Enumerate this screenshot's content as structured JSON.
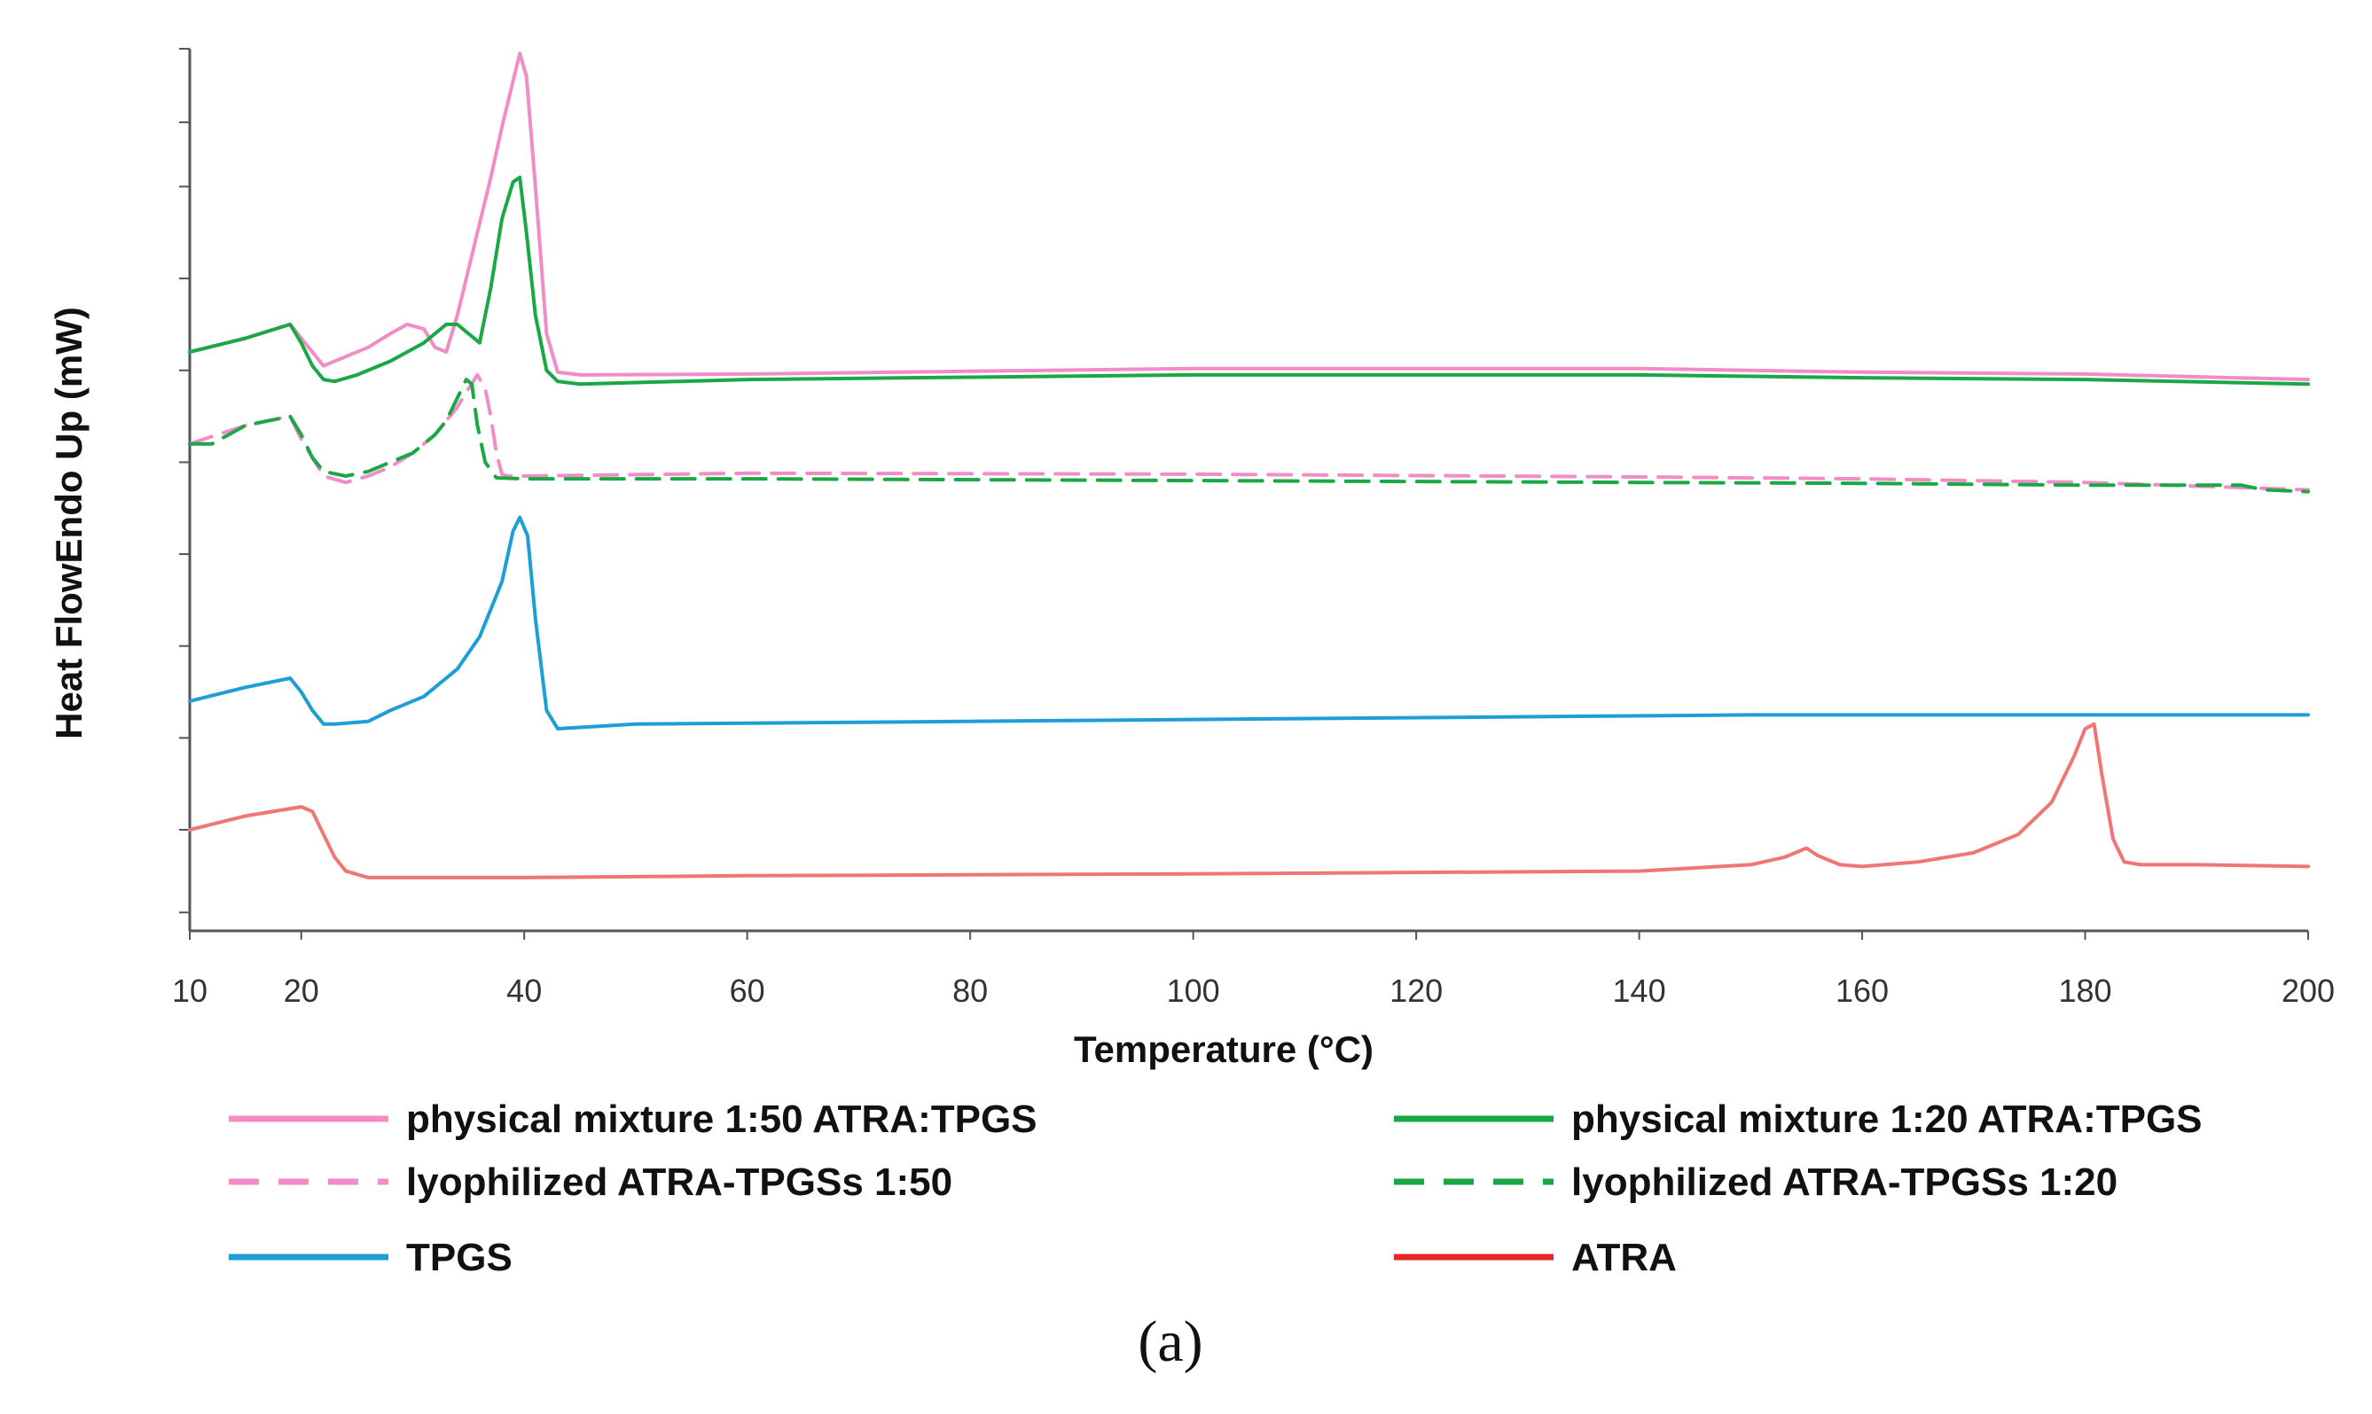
{
  "chart_data": {
    "type": "line",
    "title": "",
    "xlabel": "Temperature (°C)",
    "ylabel": "Heat FlowEndo Up (mW)",
    "xlim": [
      10,
      200
    ],
    "ylim": [
      0,
      9.6
    ],
    "x_ticks": [
      "10",
      "20",
      "40",
      "60",
      "80",
      "100",
      "120",
      "140",
      "160",
      "180",
      "200"
    ],
    "y_ticks_unlabeled": [
      0.2,
      1.1,
      2.1,
      3.1,
      4.1,
      5.1,
      6.1,
      7.1,
      8.1,
      8.8,
      9.6
    ],
    "grid": false,
    "legend_position": "bottom",
    "series": [
      {
        "name": "physical mixture 1:50 ATRA:TPGS",
        "color": "#F28CC6",
        "style": "solid",
        "x": [
          10,
          15,
          19,
          20,
          21,
          22,
          24,
          26,
          28,
          29.5,
          31,
          32,
          33,
          34,
          35,
          36,
          37,
          38,
          39,
          39.6,
          40.2,
          41,
          42,
          43,
          45,
          60,
          100,
          140,
          160,
          180,
          200
        ],
        "y": [
          6.3,
          6.45,
          6.6,
          6.45,
          6.3,
          6.15,
          6.25,
          6.35,
          6.5,
          6.6,
          6.55,
          6.35,
          6.3,
          6.7,
          7.2,
          7.7,
          8.2,
          8.75,
          9.25,
          9.55,
          9.3,
          8.1,
          6.5,
          6.08,
          6.05,
          6.06,
          6.12,
          6.12,
          6.08,
          6.06,
          6.0
        ]
      },
      {
        "name": "physical mixture 1:20 ATRA:TPGS",
        "color": "#1AA845",
        "style": "solid",
        "x": [
          10,
          15,
          19,
          20,
          21,
          22,
          23,
          25,
          28,
          31,
          33,
          34,
          35,
          36,
          37,
          38,
          39,
          39.6,
          40.2,
          41,
          42,
          43,
          45,
          60,
          100,
          140,
          160,
          180,
          200
        ],
        "y": [
          6.3,
          6.45,
          6.6,
          6.4,
          6.15,
          6.0,
          5.98,
          6.05,
          6.2,
          6.4,
          6.6,
          6.6,
          6.5,
          6.4,
          7.0,
          7.75,
          8.15,
          8.2,
          7.6,
          6.7,
          6.1,
          5.98,
          5.95,
          6.0,
          6.05,
          6.05,
          6.02,
          6.0,
          5.95
        ]
      },
      {
        "name": "lyophilized ATRA-TPGSs 1:50",
        "color": "#F28CC6",
        "style": "dashed",
        "x": [
          10,
          15,
          19,
          20,
          21,
          22,
          24,
          26,
          28,
          30,
          32,
          34,
          35,
          35.8,
          36.5,
          37,
          37.5,
          38,
          38.5,
          40,
          60,
          100,
          140,
          160,
          180,
          200
        ],
        "y": [
          5.3,
          5.5,
          5.6,
          5.35,
          5.15,
          4.95,
          4.88,
          4.95,
          5.05,
          5.2,
          5.4,
          5.7,
          5.9,
          6.05,
          5.9,
          5.6,
          5.2,
          4.97,
          4.95,
          4.95,
          4.98,
          4.97,
          4.94,
          4.92,
          4.88,
          4.8
        ]
      },
      {
        "name": "lyophilized ATRA-TPGSs 1:20",
        "color": "#1AA845",
        "style": "dashed",
        "x": [
          10,
          12,
          15,
          19,
          20,
          21,
          22,
          24,
          26,
          28,
          30,
          32,
          33,
          34,
          34.8,
          35.3,
          35.8,
          36.5,
          37.5,
          40,
          60,
          100,
          140,
          160,
          180,
          194,
          196,
          200
        ],
        "y": [
          5.3,
          5.3,
          5.5,
          5.6,
          5.4,
          5.15,
          5.0,
          4.95,
          5.0,
          5.1,
          5.2,
          5.4,
          5.55,
          5.8,
          6.0,
          5.95,
          5.5,
          5.1,
          4.93,
          4.92,
          4.92,
          4.9,
          4.88,
          4.87,
          4.85,
          4.85,
          4.8,
          4.78
        ]
      },
      {
        "name": "TPGS",
        "color": "#1E9ED6",
        "style": "solid",
        "x": [
          10,
          15,
          19,
          20,
          21,
          22,
          23,
          26,
          28,
          31,
          34,
          36,
          37,
          38,
          39,
          39.6,
          40.3,
          41,
          42,
          43,
          50,
          100,
          150,
          200
        ],
        "y": [
          2.5,
          2.65,
          2.75,
          2.6,
          2.4,
          2.25,
          2.25,
          2.28,
          2.4,
          2.55,
          2.85,
          3.2,
          3.5,
          3.8,
          4.35,
          4.5,
          4.3,
          3.4,
          2.4,
          2.2,
          2.25,
          2.3,
          2.35,
          2.35
        ]
      },
      {
        "name": "ATRA",
        "color": "#F07575",
        "style": "solid",
        "x": [
          10,
          15,
          20,
          21,
          22,
          23,
          24,
          26,
          30,
          40,
          60,
          100,
          140,
          150,
          153,
          155,
          156,
          158,
          160,
          165,
          170,
          174,
          177,
          179,
          180,
          180.8,
          181.5,
          182.5,
          183.5,
          185,
          190,
          200
        ],
        "y": [
          1.1,
          1.25,
          1.35,
          1.3,
          1.05,
          0.8,
          0.65,
          0.58,
          0.58,
          0.58,
          0.6,
          0.62,
          0.65,
          0.72,
          0.8,
          0.9,
          0.82,
          0.72,
          0.7,
          0.75,
          0.85,
          1.05,
          1.4,
          1.9,
          2.2,
          2.25,
          1.7,
          1.0,
          0.75,
          0.72,
          0.72,
          0.7
        ]
      }
    ]
  },
  "legend": {
    "items": [
      {
        "label": "physical mixture 1:50 ATRA:TPGS",
        "color": "#F28CC6",
        "style": "solid"
      },
      {
        "label": "physical mixture 1:20 ATRA:TPGS",
        "color": "#1AA845",
        "style": "solid"
      },
      {
        "label": "lyophilized ATRA-TPGSs 1:50",
        "color": "#F28CC6",
        "style": "dashed"
      },
      {
        "label": "lyophilized ATRA-TPGSs 1:20",
        "color": "#1AA845",
        "style": "dashed"
      },
      {
        "label": "TPGS",
        "color": "#1E9ED6",
        "style": "solid"
      },
      {
        "label": "ATRA",
        "color": "#E8242B",
        "style": "solid"
      }
    ]
  },
  "figure": {
    "panel_label": "(a)"
  }
}
